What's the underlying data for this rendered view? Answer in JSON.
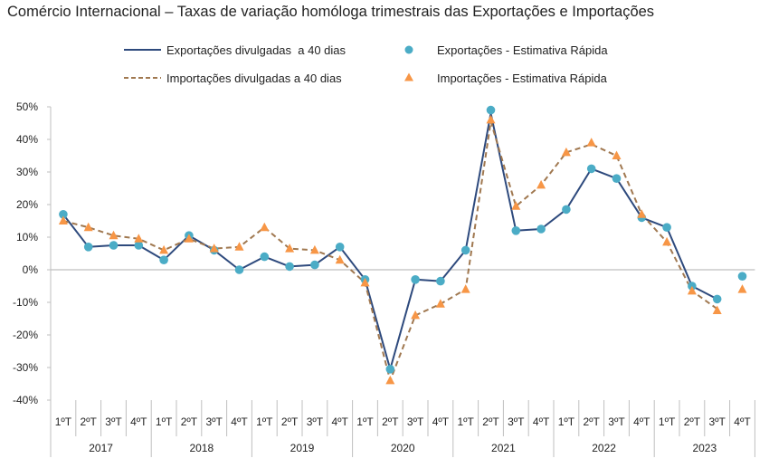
{
  "chart_data": {
    "type": "line",
    "title": "Comércio Internacional – Taxas de variação homóloga trimestrais das Exportações e Importações",
    "xlabel": "",
    "ylabel": "",
    "ylim": [
      -40,
      50
    ],
    "yticks": [
      50,
      40,
      30,
      20,
      10,
      0,
      -10,
      -20,
      -30,
      -40
    ],
    "ytick_labels": [
      "50%",
      "40%",
      "30%",
      "20%",
      "10%",
      "0%",
      "-10%",
      "-20%",
      "-30%",
      "-40%"
    ],
    "quarters": [
      "1ºT",
      "2ºT",
      "3ºT",
      "4ºT",
      "1ºT",
      "2ºT",
      "3ºT",
      "4ºT",
      "1ºT",
      "2ºT",
      "3ºT",
      "4ºT",
      "1ºT",
      "2ºT",
      "3ºT",
      "4ºT",
      "1ºT",
      "2ºT",
      "3ºT",
      "4ºT",
      "1ºT",
      "2ºT",
      "3ºT",
      "4ºT",
      "1ºT",
      "2ºT",
      "3ºT",
      "4ºT"
    ],
    "years": [
      "2017",
      "2018",
      "2019",
      "2020",
      "2021",
      "2022",
      "2023"
    ],
    "legend_position": "top",
    "series": [
      {
        "name": "Exportações divulgadas  a 40 dias",
        "style": "solid-line",
        "color": "#2e4a7d",
        "values": [
          17,
          7,
          7.5,
          7.5,
          3,
          10.5,
          6,
          0,
          4,
          1,
          1.5,
          7,
          -3,
          -30.5,
          -3,
          -3.5,
          6,
          48,
          12,
          12.5,
          18.5,
          31,
          28,
          16,
          13,
          -5,
          -9,
          null
        ]
      },
      {
        "name": "Exportações - Estimativa Rápida",
        "style": "circle-marker",
        "color": "#4bacc6",
        "values": [
          17,
          7,
          7.5,
          7.5,
          3,
          10.5,
          6,
          0,
          4,
          1,
          1.5,
          7,
          -3,
          -30.5,
          -3,
          -3.5,
          6,
          49,
          12,
          12.5,
          18.5,
          31,
          28,
          16,
          13,
          -5,
          -9,
          -2
        ]
      },
      {
        "name": "Importações divulgadas a 40 dias",
        "style": "dashed-line",
        "color": "#a07850",
        "values": [
          15,
          13,
          10.5,
          9.5,
          6,
          9.5,
          6.5,
          7,
          13,
          6.5,
          6,
          3,
          -4,
          -34,
          -14,
          -10.5,
          -6,
          45.5,
          19.5,
          26,
          36,
          38.5,
          35,
          17,
          8.5,
          -6.5,
          -12,
          null
        ]
      },
      {
        "name": "Importações - Estimativa Rápida",
        "style": "triangle-marker",
        "color": "#f79646",
        "values": [
          15,
          13,
          10.5,
          9.5,
          6,
          9.5,
          6.5,
          7,
          13,
          6.5,
          6,
          3,
          -4,
          -34,
          -14,
          -10.5,
          -6,
          46,
          19.5,
          26,
          36,
          39,
          35,
          17,
          8.5,
          -6.5,
          -12.5,
          -6
        ]
      }
    ]
  }
}
